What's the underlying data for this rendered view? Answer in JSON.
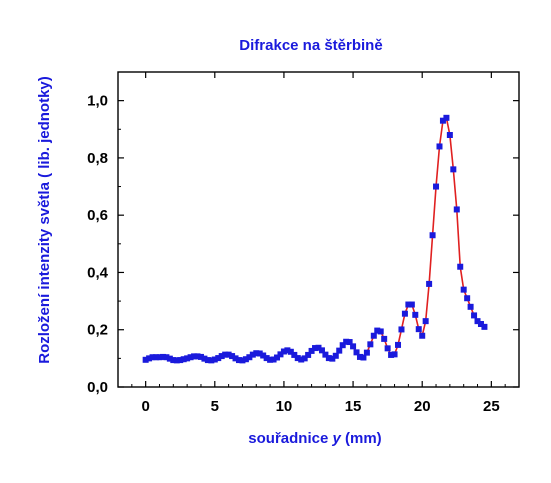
{
  "chart_data": {
    "type": "scatter",
    "title": "Difrakce na štěrbině",
    "xlabel": {
      "prefix": "souřadnice ",
      "variable": "y",
      "suffix": " (mm)"
    },
    "ylabel": "Rozložení intenzity světla ( lib. jednotky)",
    "xlim": [
      -2,
      27
    ],
    "ylim": [
      0,
      1.1
    ],
    "x_ticks": [
      0,
      5,
      10,
      15,
      20,
      25
    ],
    "y_ticks": [
      0.0,
      0.2,
      0.4,
      0.6,
      0.8,
      1.0
    ],
    "x_tick_labels": [
      "0",
      "5",
      "10",
      "15",
      "20",
      "25"
    ],
    "y_tick_labels": [
      "0,0",
      "0,2",
      "0,4",
      "0,6",
      "0,8",
      "1,0"
    ],
    "grid": false,
    "colors": {
      "title": "#1a1adc",
      "axis_label": "#1a1adc",
      "data_points": "#1a1adc",
      "fit_line": "#e02020",
      "axes": "#000000"
    },
    "series": [
      {
        "kind": "measured-points",
        "marker": "square",
        "x": [
          0.0,
          0.25,
          0.5,
          0.75,
          1.0,
          1.25,
          1.5,
          1.75,
          2.0,
          2.25,
          2.5,
          2.75,
          3.0,
          3.25,
          3.5,
          3.75,
          4.0,
          4.25,
          4.5,
          4.75,
          5.0,
          5.25,
          5.5,
          5.75,
          6.0,
          6.25,
          6.5,
          6.75,
          7.0,
          7.25,
          7.5,
          7.75,
          8.0,
          8.25,
          8.5,
          8.75,
          9.0,
          9.25,
          9.5,
          9.75,
          10.0,
          10.25,
          10.5,
          10.75,
          11.0,
          11.25,
          11.5,
          11.75,
          12.0,
          12.25,
          12.5,
          12.75,
          13.0,
          13.25,
          13.5,
          13.75,
          14.0,
          14.25,
          14.5,
          14.75,
          15.0,
          15.25,
          15.5,
          15.75,
          16.0,
          16.25,
          16.5,
          16.75,
          17.0,
          17.25,
          17.5,
          17.75,
          18.0,
          18.25,
          18.5,
          18.75,
          19.0,
          19.25,
          19.5,
          19.75,
          20.0,
          20.25,
          20.5,
          20.75,
          21.0,
          21.25,
          21.5,
          21.75,
          22.0,
          22.25,
          22.5,
          22.75,
          23.0,
          23.25,
          23.5,
          23.75,
          24.0,
          24.25,
          24.5
        ],
        "y": [
          0.095,
          0.1,
          0.104,
          0.104,
          0.104,
          0.105,
          0.104,
          0.099,
          0.094,
          0.093,
          0.094,
          0.097,
          0.1,
          0.104,
          0.107,
          0.107,
          0.105,
          0.099,
          0.094,
          0.093,
          0.096,
          0.101,
          0.108,
          0.113,
          0.113,
          0.108,
          0.1,
          0.094,
          0.093,
          0.097,
          0.104,
          0.113,
          0.118,
          0.117,
          0.11,
          0.101,
          0.095,
          0.096,
          0.103,
          0.114,
          0.124,
          0.128,
          0.123,
          0.112,
          0.101,
          0.096,
          0.1,
          0.112,
          0.126,
          0.136,
          0.137,
          0.128,
          0.113,
          0.101,
          0.099,
          0.109,
          0.127,
          0.146,
          0.158,
          0.157,
          0.142,
          0.121,
          0.105,
          0.103,
          0.12,
          0.149,
          0.179,
          0.197,
          0.194,
          0.168,
          0.135,
          0.112,
          0.114,
          0.147,
          0.201,
          0.256,
          0.288,
          0.288,
          0.252,
          0.202,
          0.179,
          0.23,
          0.36,
          0.53,
          0.7,
          0.84,
          0.93,
          0.94,
          0.88,
          0.76,
          0.62,
          0.42,
          0.34,
          0.31,
          0.28,
          0.25,
          0.23,
          0.22,
          0.21
        ]
      },
      {
        "kind": "fit-line",
        "marker": "none"
      }
    ]
  }
}
